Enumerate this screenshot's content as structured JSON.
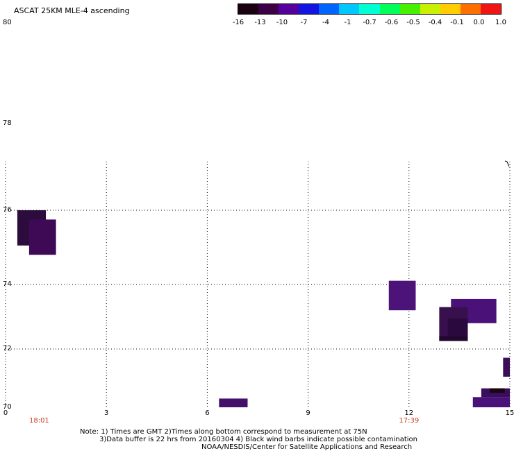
{
  "title": "ASCAT 25KM MLE-4 ascending",
  "colorbar": {
    "labels": [
      "-16",
      "-13",
      "-10",
      "-7",
      "-4",
      "-1",
      "-0.7",
      "-0.6",
      "-0.5",
      "-0.4",
      "-0.1",
      "0.0",
      "1.0"
    ],
    "colors": [
      "#1a0010",
      "#3c0046",
      "#55009b",
      "#1414e1",
      "#0064ff",
      "#00c8ff",
      "#00ffd2",
      "#00ff5a",
      "#46f000",
      "#c8f000",
      "#ffcd00",
      "#ff6e00",
      "#f01414"
    ]
  },
  "chart_data": {
    "type": "heatmap",
    "title": "ASCAT 25KM MLE-4 ascending",
    "x_ticks": [
      "0",
      "3",
      "6",
      "9",
      "12",
      "15"
    ],
    "y_ticks": [
      "80",
      "78",
      "76",
      "74",
      "72",
      "70"
    ],
    "time_labels": [
      {
        "x": 1,
        "label": "18:01"
      },
      {
        "x": 12,
        "label": "17:39"
      }
    ],
    "xlim": [
      0,
      15
    ],
    "ylim": [
      70,
      80
    ],
    "grid": true,
    "cells": [
      {
        "x0": 0.35,
        "x1": 1.2,
        "y0": 75.05,
        "y1": 76.0,
        "color": "#2c0c3c"
      },
      {
        "x0": 0.7,
        "x1": 1.5,
        "y0": 74.8,
        "y1": 75.75,
        "color": "#3e0a56"
      },
      {
        "x0": 6.35,
        "x1": 7.2,
        "y0": 69.9,
        "y1": 70.3,
        "color": "#44106a"
      },
      {
        "x0": 11.4,
        "x1": 12.2,
        "y0": 73.2,
        "y1": 74.1,
        "color": "#4c1478"
      },
      {
        "x0": 13.25,
        "x1": 14.6,
        "y0": 72.8,
        "y1": 73.55,
        "color": "#4a1278"
      },
      {
        "x0": 12.9,
        "x1": 13.75,
        "y0": 72.25,
        "y1": 73.3,
        "color": "#38104e"
      },
      {
        "x0": 13.15,
        "x1": 13.75,
        "y0": 72.4,
        "y1": 72.95,
        "color": "#2a0a3e"
      },
      {
        "x0": 12.9,
        "x1": 13.75,
        "y0": 72.25,
        "y1": 72.4,
        "color": "#22082e"
      },
      {
        "x0": 14.8,
        "x1": 15.0,
        "y0": 71.05,
        "y1": 71.7,
        "color": "#3c0e58"
      },
      {
        "x0": 13.9,
        "x1": 15.0,
        "y0": 69.9,
        "y1": 70.35,
        "color": "#48127a"
      },
      {
        "x0": 14.15,
        "x1": 15.0,
        "y0": 70.35,
        "y1": 70.65,
        "color": "#3a0e5c"
      },
      {
        "x0": 14.4,
        "x1": 14.85,
        "y0": 70.5,
        "y1": 70.65,
        "color": "#1a0612"
      }
    ]
  },
  "notes": {
    "line1": "Note: 1) Times are GMT 2)Times along bottom correspond to measurement at 75N",
    "line2": "3)Data buffer is 22 hrs from 20160304 4) Black wind barbs indicate possible contamination",
    "credit": "NOAA/NESDIS/Center for Satellite Applications and Research"
  }
}
